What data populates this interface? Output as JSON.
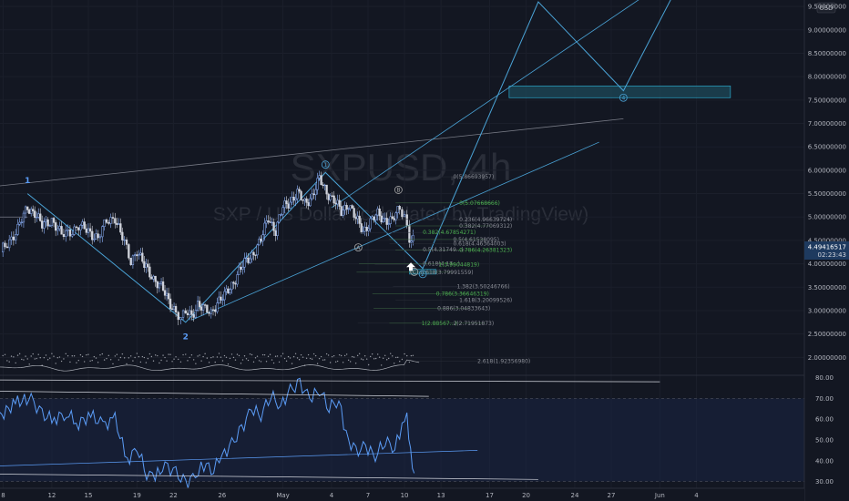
{
  "chart_data": {
    "type": "candlestick",
    "symbol": "SXPUSD",
    "timeframe": "4h",
    "watermark": "SXPUSD, 4h",
    "subtitle": "SXP / US Dollar (calculated by TradingView)",
    "currency": "USD",
    "ylim": [
      1.5,
      9.95
    ],
    "y_ticks": [
      "9.50000000",
      "9.00000000",
      "8.50000000",
      "8.00000000",
      "7.50000000",
      "7.00000000",
      "6.50000000",
      "6.00000000",
      "5.50000000",
      "5.00000000",
      "4.50000000",
      "4.00000000",
      "3.50000000",
      "3.00000000",
      "2.50000000",
      "2.00000000"
    ],
    "x_ticks": [
      {
        "label": "8",
        "day": 8
      },
      {
        "label": "12",
        "day": 12
      },
      {
        "label": "15",
        "day": 15
      },
      {
        "label": "19",
        "day": 19
      },
      {
        "label": "22",
        "day": 22
      },
      {
        "label": "26",
        "day": 26
      },
      {
        "label": "May",
        "day": 31
      },
      {
        "label": "4",
        "day": 35
      },
      {
        "label": "7",
        "day": 38
      },
      {
        "label": "10",
        "day": 41
      },
      {
        "label": "13",
        "day": 44
      },
      {
        "label": "17",
        "day": 48
      },
      {
        "label": "20",
        "day": 51
      },
      {
        "label": "24",
        "day": 55
      },
      {
        "label": "27",
        "day": 58
      },
      {
        "label": "Jun",
        "day": 62
      },
      {
        "label": "4",
        "day": 65
      }
    ],
    "last_price": "4.49416517",
    "countdown": "02:23:43",
    "close_path": [
      [
        7.8,
        4.25
      ],
      [
        8.5,
        4.5
      ],
      [
        9.2,
        4.75
      ],
      [
        10.0,
        5.2
      ],
      [
        10.6,
        5.1
      ],
      [
        11.2,
        4.8
      ],
      [
        12.0,
        4.95
      ],
      [
        12.8,
        4.6
      ],
      [
        13.5,
        4.7
      ],
      [
        14.2,
        4.8
      ],
      [
        15.0,
        4.7
      ],
      [
        15.8,
        4.55
      ],
      [
        16.5,
        4.9
      ],
      [
        17.2,
        5.0
      ],
      [
        17.8,
        4.55
      ],
      [
        18.5,
        4.05
      ],
      [
        19.0,
        4.3
      ],
      [
        19.6,
        3.95
      ],
      [
        20.2,
        3.75
      ],
      [
        21.0,
        3.5
      ],
      [
        21.6,
        3.2
      ],
      [
        22.2,
        3.0
      ],
      [
        22.6,
        2.8
      ],
      [
        23.0,
        2.95
      ],
      [
        23.5,
        2.9
      ],
      [
        24.0,
        3.15
      ],
      [
        24.6,
        3.0
      ],
      [
        25.1,
        2.95
      ],
      [
        25.6,
        3.2
      ],
      [
        26.2,
        3.3
      ],
      [
        26.8,
        3.55
      ],
      [
        27.4,
        3.85
      ],
      [
        28.0,
        4.05
      ],
      [
        28.6,
        4.25
      ],
      [
        29.2,
        4.5
      ],
      [
        29.8,
        5.0
      ],
      [
        30.4,
        4.7
      ],
      [
        31.0,
        5.2
      ],
      [
        31.6,
        5.35
      ],
      [
        32.2,
        5.5
      ],
      [
        32.8,
        5.3
      ],
      [
        33.4,
        5.45
      ],
      [
        34.0,
        5.8
      ],
      [
        34.6,
        5.55
      ],
      [
        35.2,
        5.35
      ],
      [
        35.8,
        5.1
      ],
      [
        36.4,
        5.3
      ],
      [
        37.0,
        4.95
      ],
      [
        37.6,
        4.7
      ],
      [
        38.2,
        4.9
      ],
      [
        38.8,
        5.05
      ],
      [
        39.4,
        4.95
      ],
      [
        40.0,
        4.9
      ],
      [
        40.6,
        5.2
      ],
      [
        41.0,
        5.05
      ],
      [
        41.4,
        4.55
      ],
      [
        41.7,
        4.49
      ]
    ],
    "wave_labels": [
      {
        "text": "1",
        "day": 10.0,
        "price": 5.78,
        "color": "#5b9cf6"
      },
      {
        "text": "2",
        "day": 23.0,
        "price": 2.44,
        "color": "#5b9cf6"
      },
      {
        "text": "1",
        "day": 34.5,
        "price": 6.12,
        "color": "#4aa3d6",
        "circled": true
      },
      {
        "text": "A",
        "day": 37.2,
        "price": 4.35,
        "color": "#aaaaaa",
        "circled": true
      },
      {
        "text": "B",
        "day": 40.5,
        "price": 5.58,
        "color": "#aaaaaa",
        "circled": true
      },
      {
        "text": "C",
        "day": 41.8,
        "price": 3.83,
        "color": "#aaaaaa",
        "circled": true
      },
      {
        "text": "2",
        "day": 42.5,
        "price": 3.78,
        "color": "#4aa3d6",
        "circled": true
      },
      {
        "text": "3",
        "day": 52.0,
        "price": 9.9,
        "color": "#4aa3d6",
        "circled": true
      },
      {
        "text": "4",
        "day": 59.0,
        "price": 7.55,
        "color": "#4aa3d6",
        "circled": true
      }
    ],
    "wave_path": [
      [
        10.0,
        5.5
      ],
      [
        23.0,
        2.75
      ],
      [
        34.5,
        5.95
      ],
      [
        42.5,
        3.9
      ],
      [
        52.0,
        9.6
      ],
      [
        59.0,
        7.7
      ],
      [
        63.5,
        9.95
      ]
    ],
    "channel_lines": [
      {
        "points": [
          [
            0,
            5.45
          ],
          [
            59,
            7.1
          ]
        ],
        "color": "#787b86"
      },
      {
        "points": [
          [
            23.5,
            2.8
          ],
          [
            57,
            6.6
          ]
        ],
        "color": "#4aa3d6"
      },
      {
        "points": [
          [
            35,
            5.2
          ],
          [
            62,
            9.95
          ]
        ],
        "color": "#4aa3d6"
      },
      {
        "points": [
          [
            0,
            5.0
          ],
          [
            10,
            5.0
          ]
        ],
        "color": "#787b86"
      }
    ],
    "target_box": {
      "day_from": 49.6,
      "day_to": 67.8,
      "price_low": 7.55,
      "price_high": 7.8
    },
    "support_box": {
      "day_from": 41.4,
      "day_to": 43.6,
      "price_low": 3.78,
      "price_high": 3.88
    },
    "fib_levels": [
      {
        "label": "0(5.86693957)",
        "day": 45.0,
        "price": 5.86
      },
      {
        "label": "0(5.07668666)",
        "day": 45.5,
        "price": 5.3
      },
      {
        "label": "0.236(4.96639724)",
        "day": 45.5,
        "price": 4.95
      },
      {
        "label": "0.382(4.77069312)",
        "day": 45.5,
        "price": 4.81
      },
      {
        "label": "0.382(4.67854271)",
        "day": 42.5,
        "price": 4.67
      },
      {
        "label": "0.5(4.61538095)",
        "day": 45.0,
        "price": 4.52
      },
      {
        "label": "0.618(4.46364003)",
        "day": 45.0,
        "price": 4.43
      },
      {
        "label": "0.786(4.26381323)",
        "day": 45.5,
        "price": 4.29
      },
      {
        "label": "0.5(4.31749...)",
        "day": 42.5,
        "price": 4.3
      },
      {
        "label": "0.618(4.17...)",
        "day": 42.5,
        "price": 4.0
      },
      {
        "label": "1(3.99044819)",
        "day": 43.8,
        "price": 3.98
      },
      {
        "label": "0.618(3.79991559)",
        "day": 42.3,
        "price": 3.82
      },
      {
        "label": "1.382(3.50246766)",
        "day": 45.3,
        "price": 3.52
      },
      {
        "label": "0.786(3.36646319)",
        "day": 43.6,
        "price": 3.36
      },
      {
        "label": "1.618(3.20099526)",
        "day": 45.5,
        "price": 3.22
      },
      {
        "label": "0.886(3.04833643)",
        "day": 43.7,
        "price": 3.05
      },
      {
        "label": "1(2.88567...)",
        "day": 42.4,
        "price": 2.73
      },
      {
        "label": "2(2.71951873)",
        "day": 45.0,
        "price": 2.73
      },
      {
        "label": "2.618(1.92356980)",
        "day": 47.0,
        "price": 1.92
      }
    ],
    "rsi": {
      "ylim": [
        25,
        82
      ],
      "y_ticks": [
        "80.00",
        "70.00",
        "60.00",
        "50.00",
        "40.00",
        "30.00"
      ],
      "band": [
        30,
        70
      ],
      "values": [
        [
          0,
          56
        ],
        [
          1.5,
          60
        ],
        [
          3,
          58
        ],
        [
          4.5,
          61
        ],
        [
          6,
          63
        ],
        [
          7.5,
          60
        ],
        [
          9,
          68
        ],
        [
          10.3,
          70
        ],
        [
          11.2,
          62
        ],
        [
          12.2,
          60
        ],
        [
          13.2,
          63
        ],
        [
          14.2,
          58
        ],
        [
          15.2,
          62
        ],
        [
          16.2,
          57
        ],
        [
          17.2,
          60
        ],
        [
          18.2,
          40
        ],
        [
          19.0,
          46
        ],
        [
          19.8,
          34
        ],
        [
          20.5,
          32
        ],
        [
          21.3,
          38
        ],
        [
          22.2,
          34
        ],
        [
          23.0,
          29
        ],
        [
          23.8,
          33
        ],
        [
          24.5,
          38
        ],
        [
          25.3,
          36
        ],
        [
          26.0,
          42
        ],
        [
          26.8,
          48
        ],
        [
          27.6,
          55
        ],
        [
          28.4,
          65
        ],
        [
          29.2,
          62
        ],
        [
          30.0,
          72
        ],
        [
          30.8,
          66
        ],
        [
          31.6,
          74
        ],
        [
          32.4,
          77
        ],
        [
          33.2,
          70
        ],
        [
          34.0,
          74
        ],
        [
          34.8,
          66
        ],
        [
          35.6,
          69
        ],
        [
          36.2,
          52
        ],
        [
          37.0,
          44
        ],
        [
          37.8,
          47
        ],
        [
          38.6,
          42
        ],
        [
          39.4,
          50
        ],
        [
          40.2,
          46
        ],
        [
          40.8,
          56
        ],
        [
          41.2,
          60
        ],
        [
          41.5,
          45
        ],
        [
          41.8,
          34
        ]
      ],
      "lines": [
        {
          "points": [
            [
              0,
              79
            ],
            [
              62,
              78
            ]
          ],
          "color": "#d1d4dc"
        },
        {
          "points": [
            [
              0,
              74
            ],
            [
              43,
              71
            ]
          ],
          "color": "#d1d4dc"
        },
        {
          "points": [
            [
              0,
              34
            ],
            [
              52,
              31
            ]
          ],
          "color": "#d1d4dc"
        },
        {
          "points": [
            [
              0,
              36
            ],
            [
              47,
              45
            ]
          ],
          "color": "#5b9cf6"
        }
      ]
    }
  }
}
